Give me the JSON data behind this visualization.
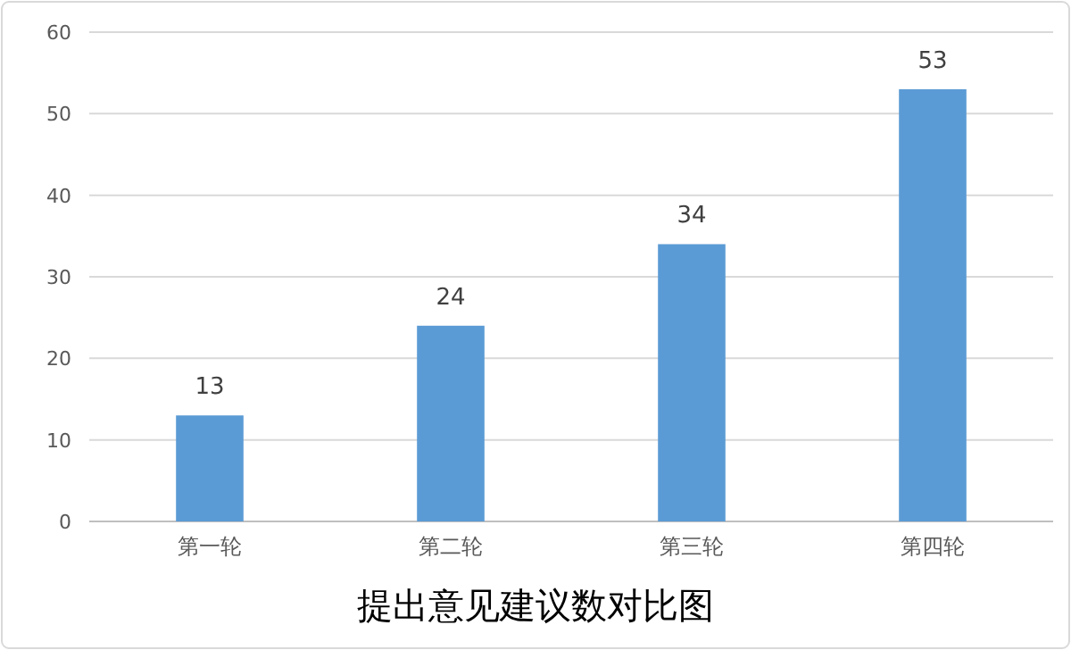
{
  "chart_data": {
    "type": "bar",
    "title": "提出意见建议数对比图",
    "categories": [
      "第一轮",
      "第二轮",
      "第三轮",
      "第四轮"
    ],
    "values": [
      13,
      24,
      34,
      53
    ],
    "color": "#5b9bd5",
    "ylim": [
      0,
      60
    ],
    "yticks": [
      0,
      10,
      20,
      30,
      40,
      50,
      60
    ],
    "grid": "y",
    "data_labels": true
  }
}
